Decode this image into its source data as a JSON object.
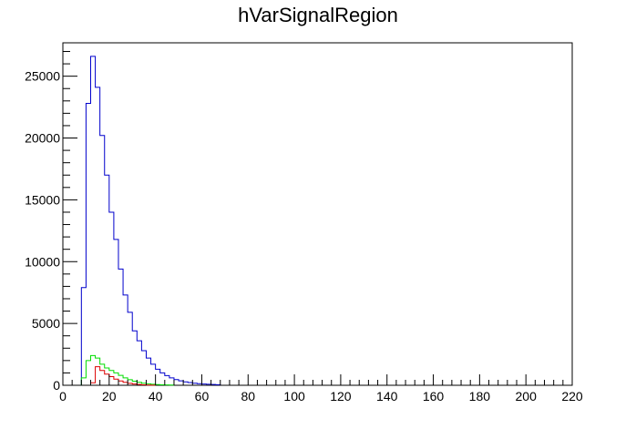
{
  "chart_data": {
    "type": "histogram",
    "title": "hVarSignalRegion",
    "xlabel": "",
    "ylabel": "",
    "xlim": [
      0,
      220
    ],
    "ylim": [
      0,
      27700
    ],
    "x_ticks": [
      0,
      20,
      40,
      60,
      80,
      100,
      120,
      140,
      160,
      180,
      200,
      220
    ],
    "y_ticks": [
      0,
      5000,
      10000,
      15000,
      20000,
      25000
    ],
    "x_minor_step": 4,
    "y_minor_step": 1000,
    "bin_width": 2,
    "grid": false,
    "legend": "none",
    "series": [
      {
        "color": "#0000cc",
        "bin_start": 8,
        "values": [
          7900,
          22800,
          26600,
          24100,
          20200,
          17000,
          14000,
          11800,
          9400,
          7300,
          5900,
          4400,
          3600,
          2800,
          2200,
          1700,
          1300,
          1000,
          780,
          600,
          460,
          360,
          280,
          220,
          170,
          130,
          100,
          80,
          60,
          45
        ]
      },
      {
        "color": "#00dd00",
        "bin_start": 8,
        "values": [
          600,
          2000,
          2400,
          2200,
          1700,
          1400,
          1200,
          1000,
          800,
          600,
          450,
          330,
          240,
          170,
          120,
          80,
          55,
          35,
          25,
          15
        ]
      },
      {
        "color": "#dd0000",
        "bin_start": 12,
        "values": [
          200,
          1500,
          1200,
          900,
          700,
          500,
          350,
          240,
          160,
          100,
          60,
          35,
          20,
          10
        ]
      }
    ]
  }
}
